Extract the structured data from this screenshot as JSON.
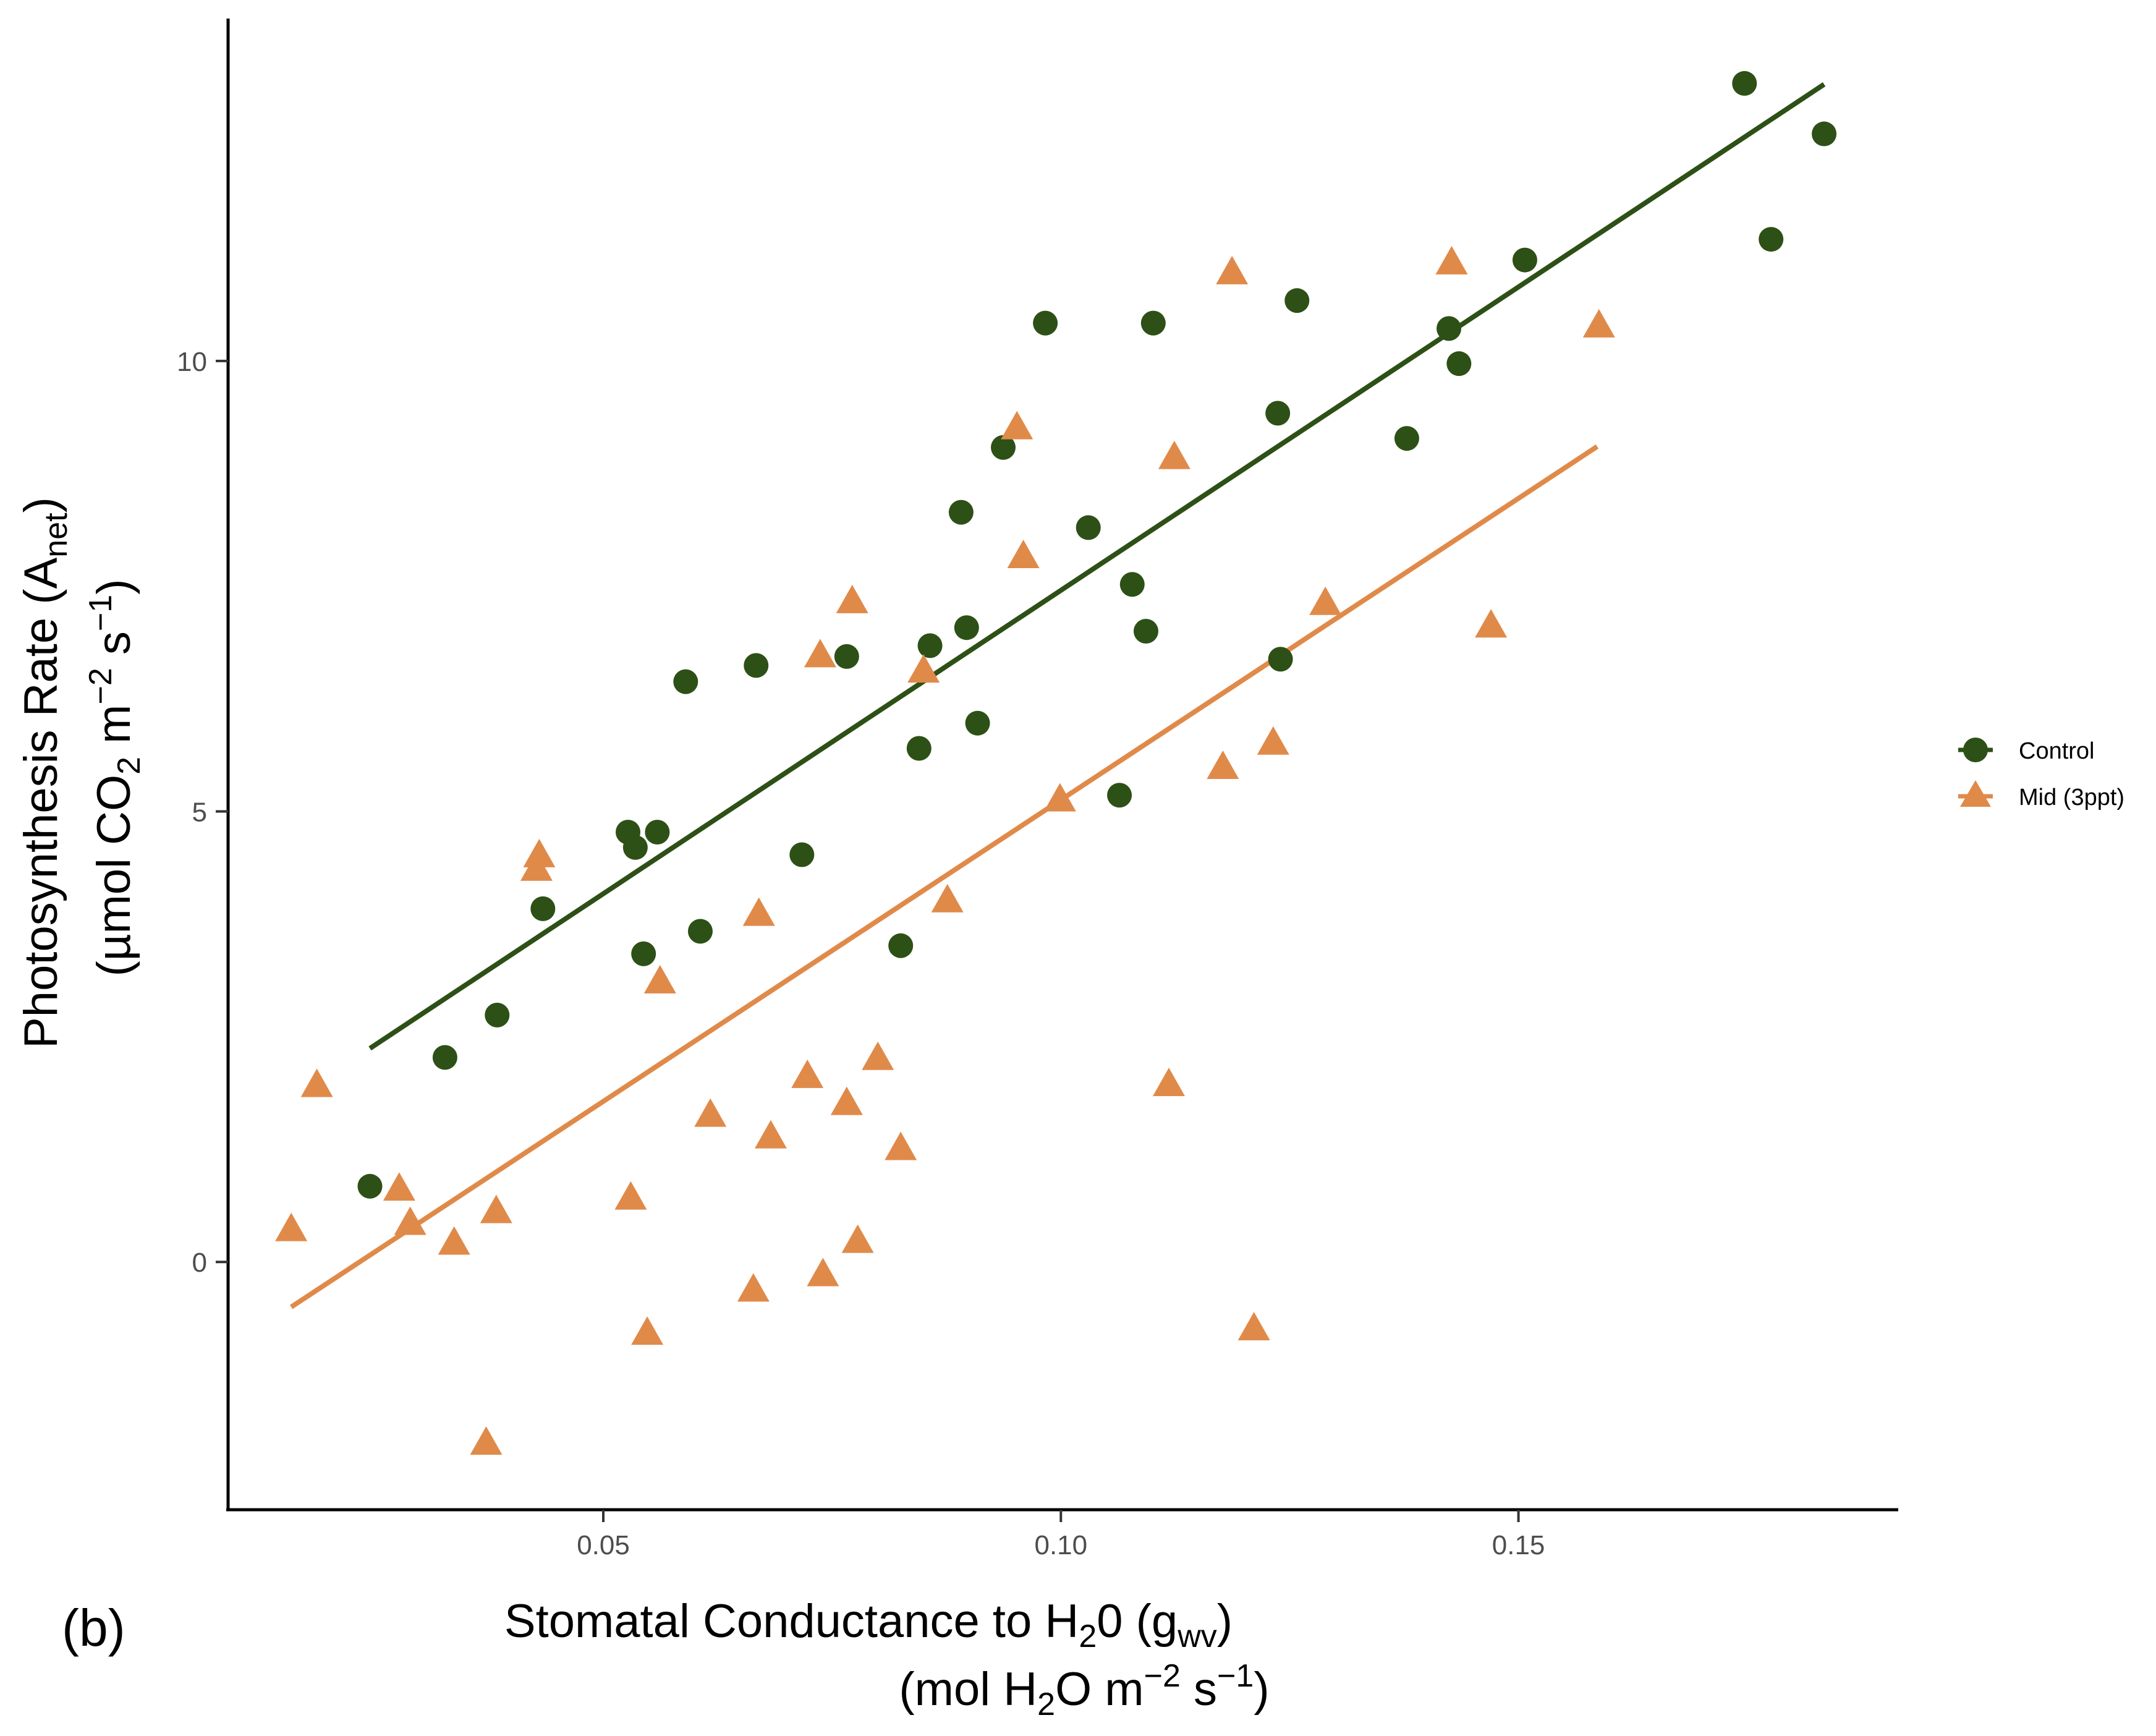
{
  "panel_label": "(b)",
  "chart_data": {
    "type": "scatter",
    "title": "",
    "xlabel_line1": "Stomatal Conductance to H",
    "xlabel_sub1": "2",
    "xlabel_line1_mid": "0 (g",
    "xlabel_sub2": "wv",
    "xlabel_line1_end": ")",
    "xlabel_line2_a": "(mol H",
    "xlabel_line2_sub": "2",
    "xlabel_line2_b": "O m",
    "xlabel_line2_sup1": "−2",
    "xlabel_line2_c": " s",
    "xlabel_line2_sup2": "−1",
    "xlabel_line2_d": ")",
    "ylabel_line1_a": "Photosynthesis Rate (A",
    "ylabel_line1_sub": "net",
    "ylabel_line1_b": ")",
    "ylabel_line2_a": "(µmol CO",
    "ylabel_line2_sub": "2",
    "ylabel_line2_b": " m",
    "ylabel_line2_sup1": "−2",
    "ylabel_line2_c": " s",
    "ylabel_line2_sup2": "−1",
    "ylabel_line2_d": ")",
    "xlim": [
      0.009,
      0.1915
    ],
    "ylim": [
      -2.75,
      13.8
    ],
    "x_ticks": [
      0.05,
      0.1,
      0.15
    ],
    "x_tick_labels": [
      "0.05",
      "0.10",
      "0.15"
    ],
    "y_ticks": [
      0,
      5,
      10
    ],
    "y_tick_labels": [
      "0",
      "5",
      "10"
    ],
    "legend_position": "right",
    "series": [
      {
        "name": "Control",
        "color": "#2d5016",
        "marker": "circle",
        "trend": {
          "x": [
            0.0245,
            0.1834
          ],
          "y": [
            2.37,
            13.07
          ]
        },
        "points": [
          [
            0.0245,
            0.84
          ],
          [
            0.0327,
            2.27
          ],
          [
            0.0384,
            2.74
          ],
          [
            0.0434,
            3.92
          ],
          [
            0.0527,
            4.77
          ],
          [
            0.0535,
            4.6
          ],
          [
            0.0544,
            3.42
          ],
          [
            0.0559,
            4.77
          ],
          [
            0.059,
            6.44
          ],
          [
            0.0606,
            3.67
          ],
          [
            0.0667,
            6.62
          ],
          [
            0.0717,
            4.52
          ],
          [
            0.0766,
            6.72
          ],
          [
            0.0825,
            3.51
          ],
          [
            0.0845,
            5.7
          ],
          [
            0.0857,
            6.84
          ],
          [
            0.0891,
            8.32
          ],
          [
            0.0897,
            7.04
          ],
          [
            0.0909,
            5.98
          ],
          [
            0.0937,
            9.04
          ],
          [
            0.0983,
            10.42
          ],
          [
            0.103,
            8.15
          ],
          [
            0.1064,
            5.18
          ],
          [
            0.1078,
            7.52
          ],
          [
            0.1093,
            7.0
          ],
          [
            0.1101,
            10.42
          ],
          [
            0.1237,
            9.42
          ],
          [
            0.124,
            6.69
          ],
          [
            0.1258,
            10.67
          ],
          [
            0.1378,
            9.14
          ],
          [
            0.1424,
            10.36
          ],
          [
            0.1435,
            9.97
          ],
          [
            0.1507,
            11.12
          ],
          [
            0.1747,
            13.08
          ],
          [
            0.1776,
            11.35
          ],
          [
            0.1834,
            12.52
          ]
        ]
      },
      {
        "name": "Mid (3ppt)",
        "color": "#e08a4a",
        "marker": "triangle",
        "trend": {
          "x": [
            0.0159,
            0.1586
          ],
          "y": [
            -0.5,
            9.05
          ]
        },
        "points": [
          [
            0.0159,
            0.35
          ],
          [
            0.0187,
            1.95
          ],
          [
            0.0277,
            0.8
          ],
          [
            0.0289,
            0.42
          ],
          [
            0.0337,
            0.2
          ],
          [
            0.0372,
            -2.02
          ],
          [
            0.0383,
            0.55
          ],
          [
            0.0427,
            4.35
          ],
          [
            0.043,
            4.5
          ],
          [
            0.053,
            0.7
          ],
          [
            0.0548,
            -0.8
          ],
          [
            0.0562,
            3.1
          ],
          [
            0.0617,
            1.62
          ],
          [
            0.0664,
            -0.32
          ],
          [
            0.067,
            3.85
          ],
          [
            0.0683,
            1.38
          ],
          [
            0.0723,
            2.05
          ],
          [
            0.0737,
            6.72
          ],
          [
            0.074,
            -0.15
          ],
          [
            0.0766,
            1.75
          ],
          [
            0.0772,
            7.32
          ],
          [
            0.0778,
            0.22
          ],
          [
            0.08,
            2.25
          ],
          [
            0.0825,
            1.25
          ],
          [
            0.085,
            6.55
          ],
          [
            0.0876,
            4.0
          ],
          [
            0.0952,
            9.25
          ],
          [
            0.0959,
            7.82
          ],
          [
            0.0999,
            5.12
          ],
          [
            0.1118,
            1.96
          ],
          [
            0.1124,
            8.92
          ],
          [
            0.1177,
            5.48
          ],
          [
            0.1187,
            10.97
          ],
          [
            0.1211,
            -0.75
          ],
          [
            0.1232,
            5.75
          ],
          [
            0.1289,
            7.3
          ],
          [
            0.1427,
            11.08
          ],
          [
            0.147,
            7.05
          ],
          [
            0.1588,
            10.38
          ]
        ]
      }
    ]
  }
}
